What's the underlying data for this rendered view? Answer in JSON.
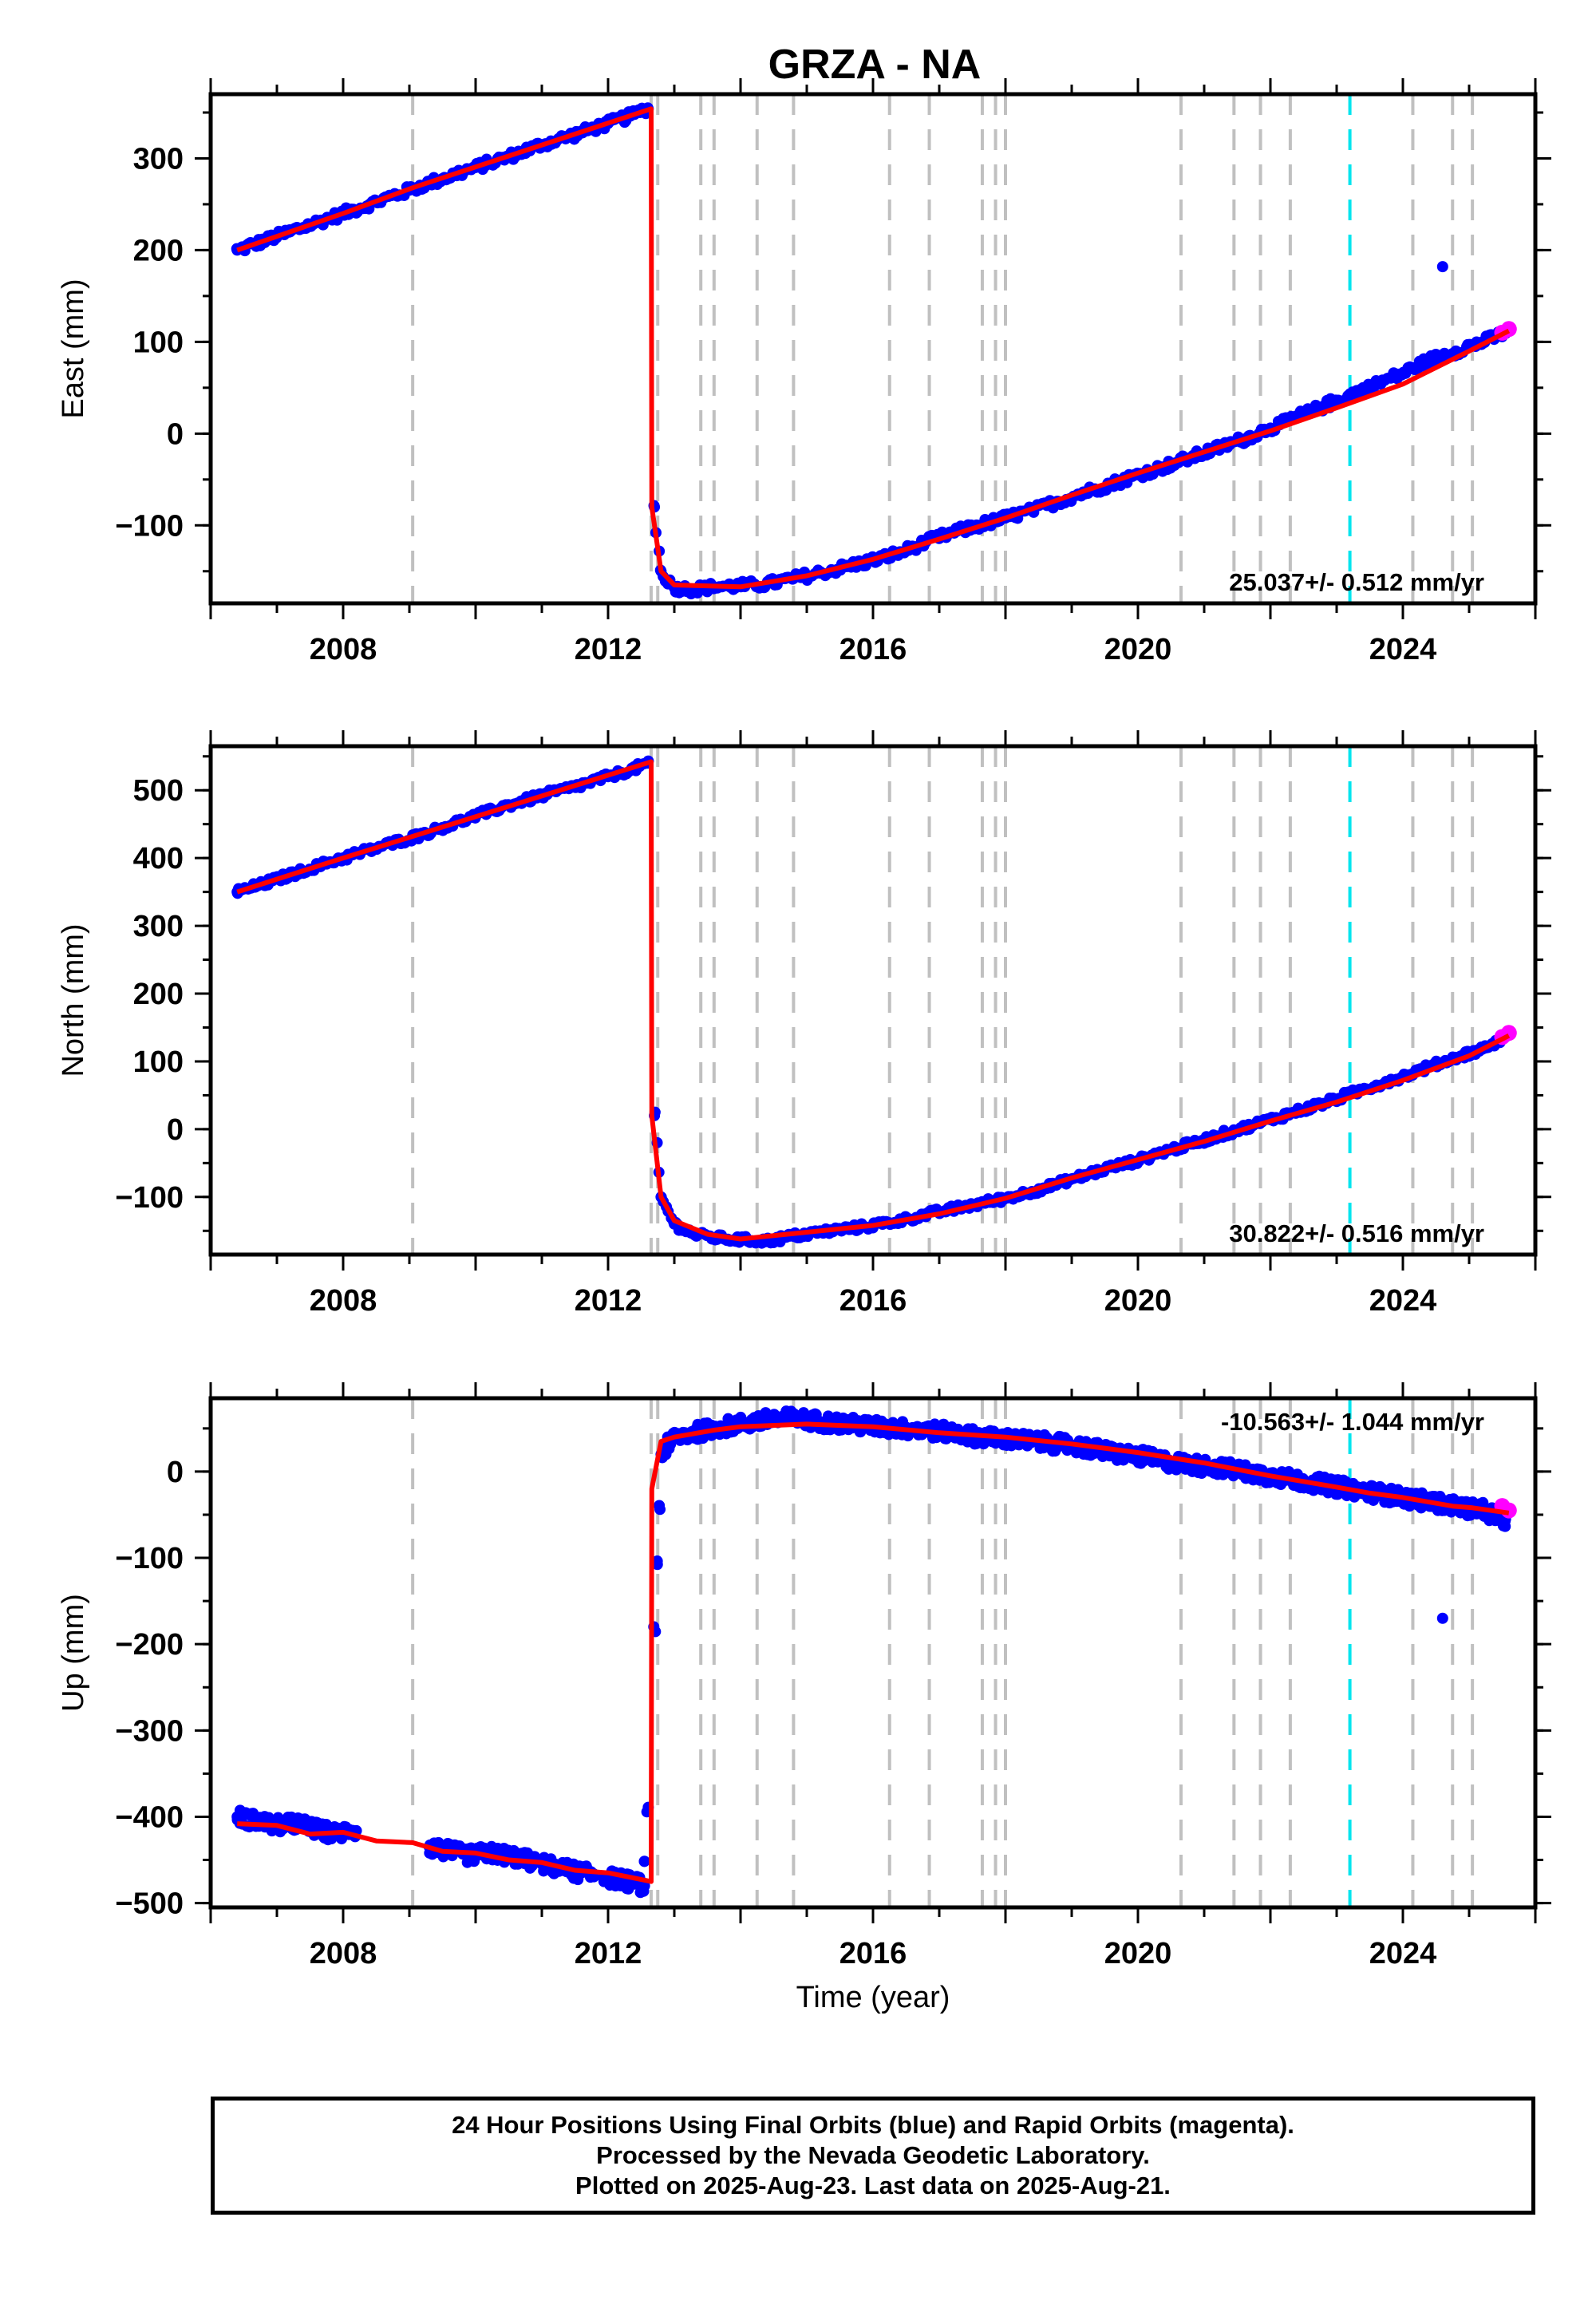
{
  "title": "GRZA - NA",
  "colors": {
    "final_orbits": "#0000ff",
    "rapid_orbits": "#ff00ff",
    "model": "#ff0000",
    "event_line": "#c0c0c0",
    "special_event_line": "#00e5ee"
  },
  "footer": {
    "line1": "24 Hour Positions Using Final Orbits (blue) and Rapid Orbits (magenta).",
    "line2": "Processed by the Nevada Geodetic Laboratory.",
    "line3": "Plotted on 2025-Aug-23. Last data on 2025-Aug-21."
  },
  "chart_data": [
    {
      "type": "scatter",
      "ylabel": "East (mm)",
      "xlabel": "",
      "xlim": [
        2006.0,
        2026.0
      ],
      "ylim": [
        -185,
        370
      ],
      "x_ticks": [
        2008,
        2012,
        2016,
        2020,
        2024
      ],
      "y_ticks": [
        -100,
        0,
        100,
        200,
        300
      ],
      "rate_label": "25.037+/- 0.512 mm/yr",
      "rate_position": "bottom-right",
      "event_lines": [
        2009.05,
        2012.65,
        2012.75,
        2013.4,
        2013.6,
        2014.25,
        2014.8,
        2016.25,
        2016.85,
        2017.65,
        2017.85,
        2018.0,
        2020.65,
        2021.45,
        2021.85,
        2022.3,
        2024.15,
        2024.75,
        2025.05
      ],
      "special_event_lines": [
        2023.2
      ],
      "series": [
        {
          "name": "Final Orbits",
          "x": [
            2006.4,
            2006.8,
            2007.2,
            2007.6,
            2008.0,
            2008.4,
            2009.1,
            2009.5,
            2010.0,
            2010.5,
            2011.0,
            2011.5,
            2012.0,
            2012.4,
            2012.6,
            2012.7,
            2012.8,
            2013.0,
            2013.3,
            2013.6,
            2014.0,
            2014.4,
            2014.8,
            2015.2,
            2015.6,
            2016.0,
            2016.4,
            2016.8,
            2017.2,
            2017.6,
            2018.0,
            2018.4,
            2018.8,
            2019.2,
            2019.6,
            2020.0,
            2020.4,
            2020.8,
            2021.2,
            2021.6,
            2022.0,
            2022.4,
            2022.8,
            2023.2,
            2023.6,
            2024.0,
            2024.4,
            2024.8,
            2025.2,
            2025.55
          ],
          "y": [
            200,
            210,
            220,
            230,
            240,
            250,
            268,
            278,
            290,
            302,
            315,
            326,
            338,
            348,
            355,
            -80,
            -150,
            -168,
            -170,
            -167,
            -166,
            -164,
            -158,
            -152,
            -145,
            -138,
            -130,
            -118,
            -108,
            -100,
            -92,
            -84,
            -74,
            -64,
            -55,
            -45,
            -36,
            -26,
            -16,
            -6,
            6,
            18,
            30,
            42,
            54,
            66,
            80,
            90,
            100,
            110
          ]
        },
        {
          "name": "Outlier",
          "x": [
            2024.6
          ],
          "y": [
            182
          ]
        },
        {
          "name": "Rapid Orbits",
          "x": [
            2025.5,
            2025.6
          ],
          "y": [
            110,
            114
          ]
        }
      ],
      "model": {
        "x": [
          2006.4,
          2008.0,
          2009.05,
          2012.65,
          2012.66,
          2012.8,
          2013.0,
          2014.0,
          2015.0,
          2016.0,
          2017.0,
          2018.0,
          2019.0,
          2020.0,
          2021.0,
          2022.0,
          2023.0,
          2024.0,
          2025.0,
          2025.6
        ],
        "y": [
          200,
          240,
          268,
          354,
          -80,
          -150,
          -165,
          -167,
          -155,
          -137,
          -115,
          -92,
          -67,
          -43,
          -20,
          3,
          28,
          54,
          90,
          112
        ]
      }
    },
    {
      "type": "scatter",
      "ylabel": "North (mm)",
      "xlabel": "",
      "xlim": [
        2006.0,
        2026.0
      ],
      "ylim": [
        -185,
        565
      ],
      "x_ticks": [
        2008,
        2012,
        2016,
        2020,
        2024
      ],
      "y_ticks": [
        -100,
        0,
        100,
        200,
        300,
        400,
        500
      ],
      "rate_label": "30.822+/- 0.516 mm/yr",
      "rate_position": "bottom-right",
      "event_lines": [
        2009.05,
        2012.65,
        2012.75,
        2013.4,
        2013.6,
        2014.25,
        2014.8,
        2016.25,
        2016.85,
        2017.65,
        2017.85,
        2018.0,
        2020.65,
        2021.45,
        2021.85,
        2022.3,
        2024.15,
        2024.75,
        2025.05
      ],
      "special_event_lines": [
        2023.2
      ],
      "series": [
        {
          "name": "Final Orbits",
          "x": [
            2006.4,
            2006.8,
            2007.2,
            2007.6,
            2008.0,
            2008.4,
            2009.1,
            2009.5,
            2010.0,
            2010.5,
            2011.0,
            2011.5,
            2012.0,
            2012.4,
            2012.6,
            2012.7,
            2012.8,
            2013.0,
            2013.3,
            2013.6,
            2014.0,
            2014.4,
            2014.8,
            2015.2,
            2015.6,
            2016.0,
            2016.4,
            2016.8,
            2017.2,
            2017.6,
            2018.0,
            2018.4,
            2018.8,
            2019.2,
            2019.6,
            2020.0,
            2020.4,
            2020.8,
            2021.2,
            2021.6,
            2022.0,
            2022.4,
            2022.8,
            2023.2,
            2023.6,
            2024.0,
            2024.4,
            2024.8,
            2025.2,
            2025.55
          ],
          "y": [
            350,
            362,
            375,
            388,
            400,
            412,
            432,
            445,
            462,
            478,
            492,
            505,
            520,
            532,
            540,
            20,
            -100,
            -140,
            -155,
            -160,
            -163,
            -165,
            -158,
            -152,
            -147,
            -142,
            -135,
            -126,
            -118,
            -110,
            -102,
            -92,
            -80,
            -68,
            -56,
            -46,
            -33,
            -22,
            -10,
            2,
            14,
            26,
            38,
            52,
            65,
            78,
            92,
            106,
            118,
            136
          ]
        },
        {
          "name": "Rapid Orbits",
          "x": [
            2025.5,
            2025.6
          ],
          "y": [
            136,
            142
          ]
        }
      ],
      "model": {
        "x": [
          2006.4,
          2008.0,
          2009.05,
          2012.65,
          2012.66,
          2012.8,
          2013.0,
          2013.5,
          2014.0,
          2015.0,
          2016.0,
          2017.0,
          2018.0,
          2019.0,
          2020.0,
          2021.0,
          2022.0,
          2023.0,
          2024.0,
          2025.0,
          2025.6
        ],
        "y": [
          350,
          400,
          432,
          542,
          20,
          -100,
          -135,
          -155,
          -162,
          -152,
          -142,
          -125,
          -102,
          -72,
          -45,
          -18,
          12,
          40,
          72,
          108,
          138
        ]
      }
    },
    {
      "type": "scatter",
      "ylabel": "Up (mm)",
      "xlabel": "Time (year)",
      "xlim": [
        2006.0,
        2026.0
      ],
      "ylim": [
        -505,
        85
      ],
      "x_ticks": [
        2008,
        2012,
        2016,
        2020,
        2024
      ],
      "y_ticks": [
        -500,
        -400,
        -300,
        -200,
        -100,
        0
      ],
      "rate_label": "-10.563+/- 1.044 mm/yr",
      "rate_position": "top-right",
      "event_lines": [
        2009.05,
        2012.65,
        2012.75,
        2013.4,
        2013.6,
        2014.25,
        2014.8,
        2016.25,
        2016.85,
        2017.65,
        2017.85,
        2018.0,
        2020.65,
        2021.45,
        2021.85,
        2022.3,
        2024.15,
        2024.75,
        2025.05
      ],
      "special_event_lines": [
        2023.2
      ],
      "series": [
        {
          "name": "Final Orbits",
          "x": [
            2006.4,
            2006.7,
            2007.0,
            2007.3,
            2007.6,
            2007.9,
            2008.1,
            2009.3,
            2009.6,
            2009.9,
            2010.2,
            2010.5,
            2011.0,
            2011.3,
            2011.6,
            2012.0,
            2012.3,
            2012.55,
            2012.8,
            2013.0,
            2013.3,
            2013.6,
            2014.0,
            2014.4,
            2014.8,
            2015.2,
            2015.6,
            2016.0,
            2016.4,
            2016.8,
            2017.2,
            2017.6,
            2018.0,
            2018.4,
            2018.8,
            2019.2,
            2019.6,
            2020.0,
            2020.4,
            2020.8,
            2021.2,
            2021.6,
            2022.0,
            2022.4,
            2022.8,
            2023.2,
            2023.6,
            2024.0,
            2024.4,
            2024.8,
            2025.2,
            2025.55
          ],
          "y": [
            -400,
            -405,
            -410,
            -408,
            -415,
            -420,
            -415,
            -435,
            -440,
            -445,
            -442,
            -445,
            -455,
            -460,
            -465,
            -470,
            -475,
            -480,
            20,
            40,
            45,
            50,
            55,
            60,
            62,
            58,
            55,
            52,
            50,
            48,
            45,
            40,
            38,
            35,
            32,
            28,
            22,
            18,
            12,
            8,
            5,
            0,
            -5,
            -10,
            -15,
            -20,
            -25,
            -30,
            -35,
            -40,
            -45,
            -55
          ]
        },
        {
          "name": "Outlier",
          "x": [
            2024.6
          ],
          "y": [
            -170
          ]
        },
        {
          "name": "Rapid Orbits",
          "x": [
            2025.5,
            2025.6
          ],
          "y": [
            -40,
            -45
          ]
        }
      ],
      "model": {
        "x": [
          2006.4,
          2007.0,
          2007.5,
          2008.0,
          2008.5,
          2009.05,
          2009.5,
          2010.0,
          2010.5,
          2011.0,
          2011.5,
          2012.0,
          2012.65,
          2012.66,
          2012.8,
          2013.0,
          2013.6,
          2014.0,
          2015.0,
          2016.0,
          2017.0,
          2018.0,
          2019.0,
          2020.0,
          2021.0,
          2022.0,
          2023.0,
          2023.5,
          2024.0,
          2024.75,
          2025.05,
          2025.6
        ],
        "y": [
          -408,
          -410,
          -420,
          -418,
          -428,
          -430,
          -440,
          -442,
          -450,
          -453,
          -462,
          -465,
          -475,
          -20,
          35,
          40,
          48,
          52,
          55,
          52,
          45,
          40,
          32,
          22,
          10,
          -5,
          -18,
          -25,
          -30,
          -40,
          -42,
          -48
        ]
      }
    }
  ]
}
